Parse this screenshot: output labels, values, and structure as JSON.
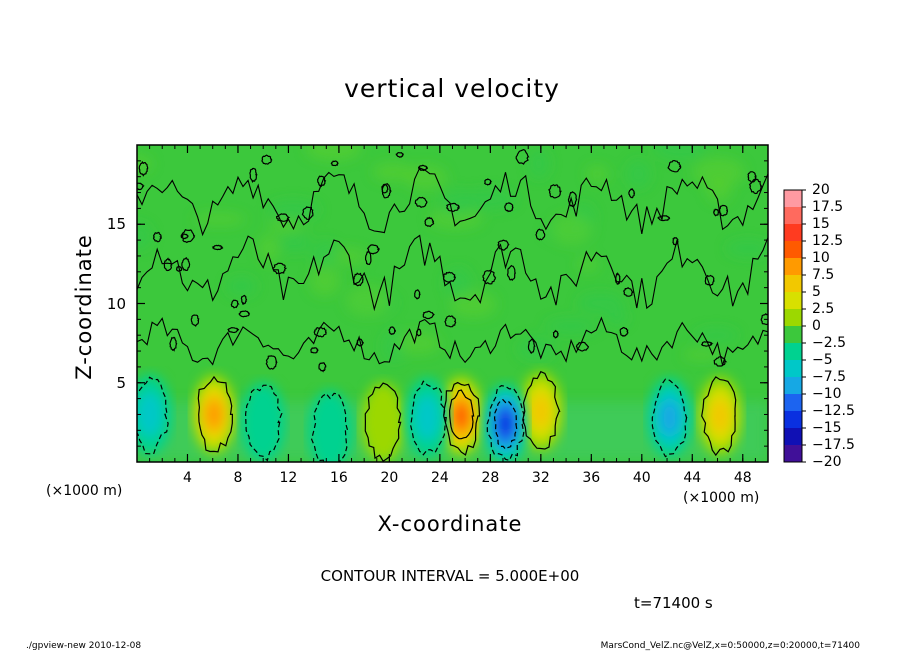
{
  "chart_data": {
    "type": "heatmap",
    "title": "vertical velocity",
    "xlabel": "X-coordinate",
    "ylabel": "Z-coordinate",
    "x_unit_label": "(×1000 m)",
    "x_ticks": [
      "4",
      "8",
      "12",
      "16",
      "20",
      "24",
      "28",
      "32",
      "36",
      "40",
      "44",
      "48"
    ],
    "y_ticks": [
      "5",
      "10",
      "15"
    ],
    "xlim": [
      0,
      50
    ],
    "ylim": [
      0,
      20
    ],
    "colorbar": {
      "levels": [
        "20",
        "17.5",
        "15",
        "12.5",
        "10",
        "7.5",
        "5",
        "2.5",
        "0",
        "−2.5",
        "−5",
        "−7.5",
        "−10",
        "−12.5",
        "−15",
        "−17.5",
        "−20"
      ],
      "colors": [
        "#ff9aa2",
        "#ff6a5e",
        "#ff3b20",
        "#ff5a00",
        "#ff9a00",
        "#f2c800",
        "#d8e000",
        "#9cd800",
        "#3cc83c",
        "#00d290",
        "#00c8c8",
        "#16a8e4",
        "#1c64f0",
        "#0a30e0",
        "#1010b4",
        "#401098",
        "#6a10a0"
      ]
    },
    "features": [
      {
        "x": 6.1,
        "z": 3.0,
        "w": 9.0,
        "polarity": "updraft"
      },
      {
        "x": 25.7,
        "z": 2.9,
        "w": 12.0,
        "polarity": "updraft"
      },
      {
        "x": 32.0,
        "z": 3.2,
        "w": 7.0,
        "polarity": "updraft"
      },
      {
        "x": 46.2,
        "z": 2.9,
        "w": 8.0,
        "polarity": "updraft"
      },
      {
        "x": 19.5,
        "z": 2.5,
        "w": 3.0,
        "polarity": "updraft"
      },
      {
        "x": 1.0,
        "z": 3.0,
        "w": -6.0,
        "polarity": "downdraft"
      },
      {
        "x": 23.0,
        "z": 2.8,
        "w": -5.5,
        "polarity": "downdraft"
      },
      {
        "x": 29.2,
        "z": 2.4,
        "w": -13.0,
        "polarity": "downdraft"
      },
      {
        "x": 42.2,
        "z": 2.8,
        "w": -8.0,
        "polarity": "downdraft"
      },
      {
        "x": 10.0,
        "z": 2.5,
        "w": -3.0,
        "polarity": "downdraft"
      },
      {
        "x": 15.3,
        "z": 2.0,
        "w": -3.0,
        "polarity": "downdraft"
      }
    ]
  },
  "contour_interval_text": "CONTOUR INTERVAL = 5.000E+00",
  "time_text": "t=71400 s",
  "footer_left": "./gpview-new  2010-12-08",
  "footer_right": "MarsCond_VelZ.nc@VelZ,x=0:50000,z=0:20000,t=71400"
}
